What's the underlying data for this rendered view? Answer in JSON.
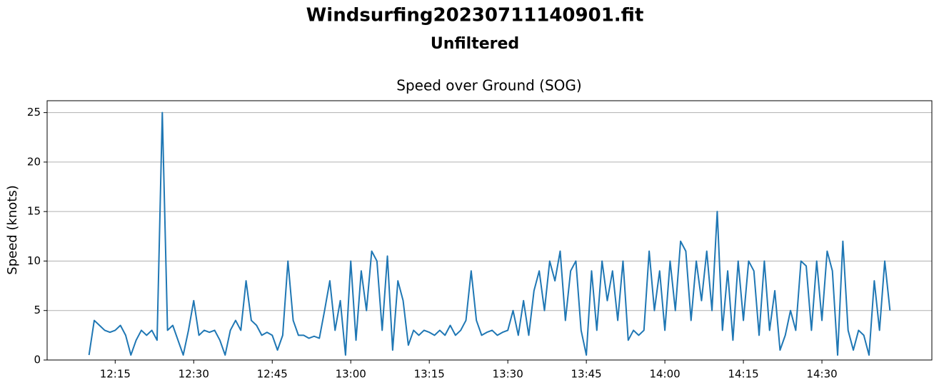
{
  "chart_data": {
    "type": "line",
    "suptitle": "Windsurfing20230711140901.fit",
    "subtitle": "Unfiltered",
    "title": "Speed over Ground (SOG)",
    "y_label": "Speed (knots)",
    "grid": true,
    "xlim": [
      "12:02",
      "14:51"
    ],
    "ylim": [
      0,
      26.2
    ],
    "yticks": [
      0,
      5,
      10,
      15,
      20,
      25
    ],
    "xticks": [
      "12:15",
      "12:30",
      "12:45",
      "13:00",
      "13:15",
      "13:30",
      "13:45",
      "14:00",
      "14:15",
      "14:30"
    ],
    "x": [
      "12:10",
      "12:11",
      "12:12",
      "12:13",
      "12:14",
      "12:15",
      "12:16",
      "12:17",
      "12:18",
      "12:19",
      "12:20",
      "12:21",
      "12:22",
      "12:23",
      "12:24",
      "12:25",
      "12:26",
      "12:27",
      "12:28",
      "12:29",
      "12:30",
      "12:31",
      "12:32",
      "12:33",
      "12:34",
      "12:35",
      "12:36",
      "12:37",
      "12:38",
      "12:39",
      "12:40",
      "12:41",
      "12:42",
      "12:43",
      "12:44",
      "12:45",
      "12:46",
      "12:47",
      "12:48",
      "12:49",
      "12:50",
      "12:51",
      "12:52",
      "12:53",
      "12:54",
      "12:55",
      "12:56",
      "12:57",
      "12:58",
      "12:59",
      "13:00",
      "13:01",
      "13:02",
      "13:03",
      "13:04",
      "13:05",
      "13:06",
      "13:07",
      "13:08",
      "13:09",
      "13:10",
      "13:11",
      "13:12",
      "13:13",
      "13:14",
      "13:15",
      "13:16",
      "13:17",
      "13:18",
      "13:19",
      "13:20",
      "13:21",
      "13:22",
      "13:23",
      "13:24",
      "13:25",
      "13:26",
      "13:27",
      "13:28",
      "13:29",
      "13:30",
      "13:31",
      "13:32",
      "13:33",
      "13:34",
      "13:35",
      "13:36",
      "13:37",
      "13:38",
      "13:39",
      "13:40",
      "13:41",
      "13:42",
      "13:43",
      "13:44",
      "13:45",
      "13:46",
      "13:47",
      "13:48",
      "13:49",
      "13:50",
      "13:51",
      "13:52",
      "13:53",
      "13:54",
      "13:55",
      "13:56",
      "13:57",
      "13:58",
      "13:59",
      "14:00",
      "14:01",
      "14:02",
      "14:03",
      "14:04",
      "14:05",
      "14:06",
      "14:07",
      "14:08",
      "14:09",
      "14:10",
      "14:11",
      "14:12",
      "14:13",
      "14:14",
      "14:15",
      "14:16",
      "14:17",
      "14:18",
      "14:19",
      "14:20",
      "14:21",
      "14:22",
      "14:23",
      "14:24",
      "14:25",
      "14:26",
      "14:27",
      "14:28",
      "14:29",
      "14:30",
      "14:31",
      "14:32",
      "14:33",
      "14:34",
      "14:35",
      "14:36",
      "14:37",
      "14:38",
      "14:39",
      "14:40",
      "14:41",
      "14:42",
      "14:43"
    ],
    "series": [
      {
        "color": "#1f77b4",
        "values": [
          0.5,
          4,
          3.5,
          3,
          2.8,
          3,
          3.5,
          2.5,
          0.5,
          2,
          3,
          2.5,
          3,
          2,
          25,
          3,
          3.5,
          2,
          0.5,
          3,
          6,
          2.5,
          3,
          2.8,
          3,
          2,
          0.5,
          3,
          4,
          3,
          8,
          4,
          3.5,
          2.5,
          2.8,
          2.5,
          1,
          2.5,
          10,
          4,
          2.5,
          2.5,
          2.2,
          2.4,
          2.2,
          5,
          8,
          3,
          6,
          0.5,
          10,
          2,
          9,
          5,
          11,
          10,
          3,
          10.5,
          1,
          8,
          6,
          1.5,
          3,
          2.5,
          3,
          2.8,
          2.5,
          3,
          2.5,
          3.5,
          2.5,
          3,
          4,
          9,
          4,
          2.5,
          2.8,
          3,
          2.5,
          2.8,
          3,
          5,
          2.5,
          6,
          2.5,
          7,
          9,
          5,
          10,
          8,
          11,
          4,
          9,
          10,
          3,
          0.5,
          9,
          3,
          10,
          6,
          9,
          4,
          10,
          2,
          3,
          2.5,
          3,
          11,
          5,
          9,
          3,
          10,
          5,
          12,
          11,
          4,
          10,
          6,
          11,
          5,
          15,
          3,
          9,
          2,
          10,
          4,
          10,
          9,
          2.5,
          10,
          3,
          7,
          1,
          2.5,
          5,
          3,
          10,
          9.5,
          3,
          10,
          4,
          11,
          9,
          0.5,
          12,
          3,
          1,
          3,
          2.5,
          0.5,
          8,
          3,
          10,
          5
        ]
      }
    ]
  }
}
